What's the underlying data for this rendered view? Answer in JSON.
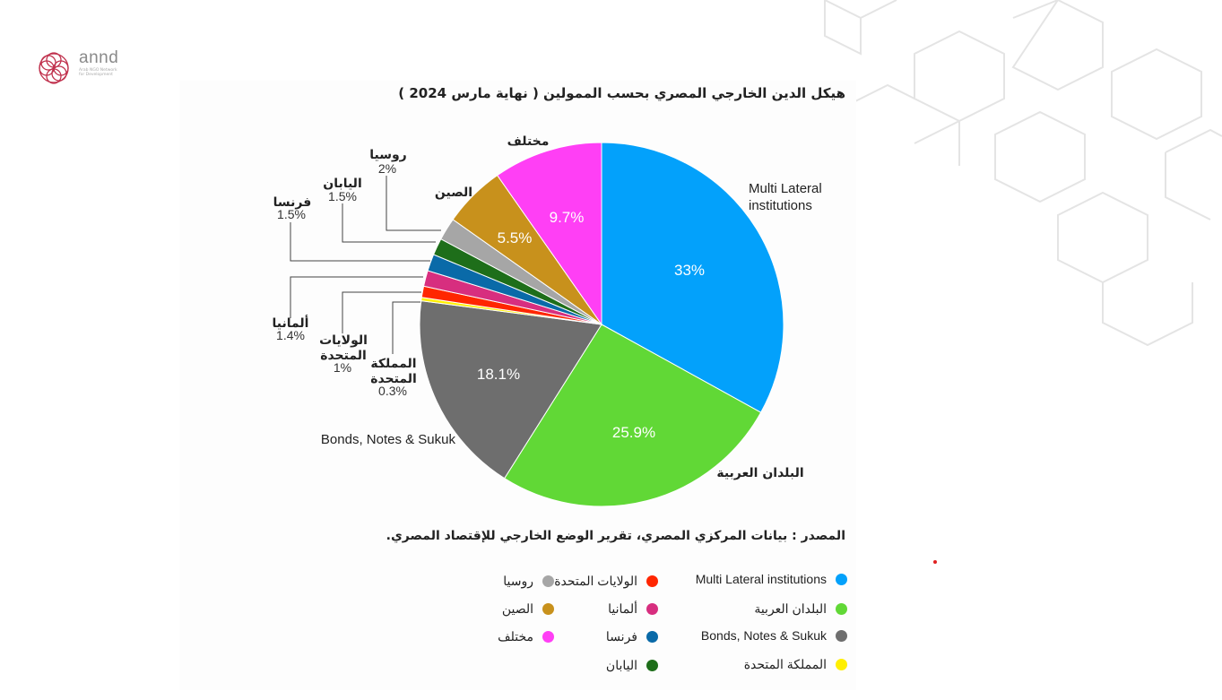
{
  "logo": {
    "name": "annd",
    "subtitle": "Arab NGO Network for Development"
  },
  "chart_data": {
    "type": "pie",
    "title": "هيكل الدين الخارجي المصري بحسب الممولين ( نهاية مارس 2024 )",
    "slices": [
      {
        "name": "Multi Lateral institutions",
        "value": 33,
        "label": "33%",
        "color": "#03a1fb"
      },
      {
        "name": "البلدان العربية",
        "value": 25.9,
        "label": "25.9%",
        "color": "#61d836"
      },
      {
        "name": "Bonds, Notes & Sukuk",
        "value": 18.1,
        "label": "18.1%",
        "color": "#6e6e6e"
      },
      {
        "name": "المملكة المتحدة",
        "value": 0.3,
        "label": "0.3%",
        "color": "#ffef00"
      },
      {
        "name": "الولايات المتحدة",
        "value": 1,
        "label": "1%",
        "color": "#ff2600"
      },
      {
        "name": "ألمانيا",
        "value": 1.4,
        "label": "1.4%",
        "color": "#d72e7f"
      },
      {
        "name": "فرنسا",
        "value": 1.5,
        "label": "1.5%",
        "color": "#0a6aa8"
      },
      {
        "name": "اليابان",
        "value": 1.5,
        "label": "1.5%",
        "color": "#1e6e1a"
      },
      {
        "name": "روسيا",
        "value": 2,
        "label": "2%",
        "color": "#a6a6a6"
      },
      {
        "name": "الصين",
        "value": 5.5,
        "label": "5.5%",
        "color": "#c8911c"
      },
      {
        "name": "مختلف",
        "value": 9.7,
        "label": "9.7%",
        "color": "#ff3ff5"
      }
    ],
    "legend_placement": "bottom"
  },
  "source": "المصدر : بيانات المركزي المصري، تقرير الوضع الخارجي للإقتصاد المصري.",
  "labels": {
    "multi_lateral": [
      "Multi Lateral",
      "institutions"
    ],
    "arab": "البلدان العربية",
    "bonds": "Bonds, Notes & Sukuk",
    "uk": [
      "المملكة",
      "المتحدة"
    ],
    "us": [
      "الولايات",
      "المتحدة"
    ],
    "germany": "ألمانيا",
    "france": "فرنسا",
    "japan": "اليابان",
    "russia": "روسيا",
    "china": "الصين",
    "misc": "مختلف"
  },
  "legend": [
    {
      "label": "Multi Lateral institutions",
      "color": "#03a1fb"
    },
    {
      "label": "البلدان العربية",
      "color": "#61d836"
    },
    {
      "label": "Bonds, Notes & Sukuk",
      "color": "#6e6e6e"
    },
    {
      "label": "المملكة المتحدة",
      "color": "#ffef00"
    },
    {
      "label": "الولايات المتحدة",
      "color": "#ff2600"
    },
    {
      "label": "ألمانيا",
      "color": "#d72e7f"
    },
    {
      "label": "فرنسا",
      "color": "#0a6aa8"
    },
    {
      "label": "اليابان",
      "color": "#1e6e1a"
    },
    {
      "label": "روسيا",
      "color": "#a6a6a6"
    },
    {
      "label": "الصين",
      "color": "#c8911c"
    },
    {
      "label": "مختلف",
      "color": "#ff3ff5"
    }
  ]
}
